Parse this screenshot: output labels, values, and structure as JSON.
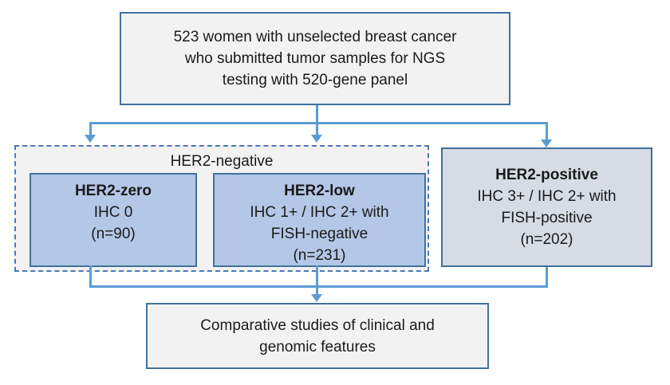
{
  "diagram": {
    "colors": {
      "connector": "#5b9bd5",
      "solid_border": "#41719c",
      "dashed_border": "#4a7ab5",
      "neutral_fill": "#f2f2f2",
      "subbox_fill": "#b4c7e7",
      "positive_fill": "#d6dbe4"
    },
    "nodes": {
      "source": {
        "lines": [
          "523 women with unselected breast cancer",
          "who submitted tumor samples for NGS",
          "testing with 520-gene panel"
        ]
      },
      "her2_negative_group": {
        "label": "HER2-negative"
      },
      "her2_zero": {
        "title": "HER2-zero",
        "lines": [
          "IHC 0",
          "(n=90)"
        ]
      },
      "her2_low": {
        "title": "HER2-low",
        "lines": [
          "IHC 1+ / IHC 2+ with",
          "FISH-negative",
          "(n=231)"
        ]
      },
      "her2_positive": {
        "title": "HER2-positive",
        "lines": [
          "IHC 3+ / IHC 2+ with",
          "FISH-positive",
          "(n=202)"
        ]
      },
      "outcome": {
        "lines": [
          "Comparative studies of clinical and",
          "genomic features"
        ]
      }
    }
  }
}
